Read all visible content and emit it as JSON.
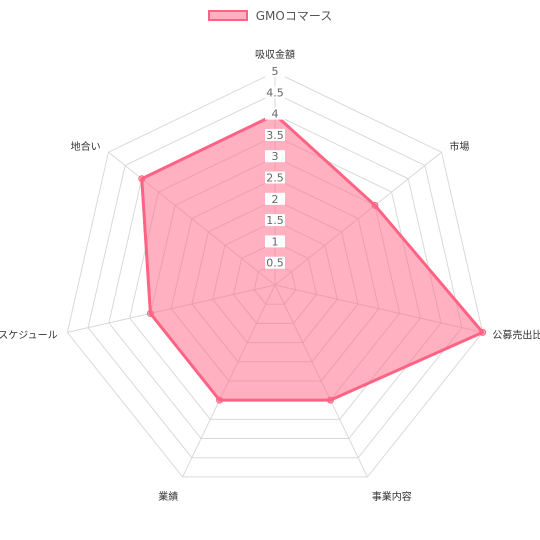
{
  "chart_data": {
    "type": "radar",
    "axes": [
      "吸収金額",
      "市場",
      "公募売出比",
      "事業内容",
      "業績",
      "スケジュール",
      "地合い"
    ],
    "ticks": [
      "0.5",
      "1",
      "1.5",
      "2",
      "2.5",
      "3",
      "3.5",
      "4",
      "4.5",
      "5"
    ],
    "rmax": 5,
    "series": [
      {
        "name": "GMOコマース",
        "values": [
          4,
          3,
          5,
          3,
          3,
          3,
          4
        ]
      }
    ],
    "grid": true,
    "legend_position": "top",
    "colors": {
      "line": "#ff6384",
      "fill": "rgba(255,99,132,0.5)",
      "grid": "#d9d9d9"
    }
  }
}
